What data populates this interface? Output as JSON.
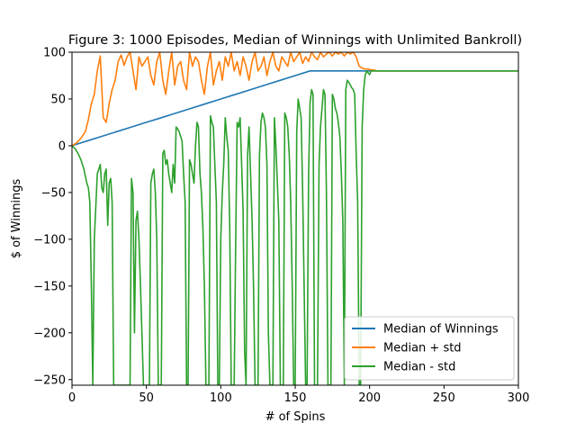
{
  "chart_data": {
    "type": "line",
    "title": "Figure 3: 1000 Episodes, Median of Winnings with Unlimited Bankroll)",
    "xlabel": "# of Spins",
    "ylabel": "$ of Winnings",
    "xlim": [
      0,
      300
    ],
    "ylim": [
      -256,
      100
    ],
    "xticks": [
      "0",
      "50",
      "100",
      "150",
      "200",
      "250",
      "300"
    ],
    "yticks": [
      "−250",
      "−200",
      "−150",
      "−100",
      "−50",
      "0",
      "50",
      "100"
    ],
    "grid": false,
    "legend_position": "lower-right",
    "series": [
      {
        "name": "Median of Winnings",
        "color": "#1f77b4",
        "x": [
          0,
          10,
          20,
          30,
          40,
          50,
          60,
          70,
          80,
          90,
          100,
          110,
          120,
          130,
          140,
          150,
          160,
          168,
          180,
          190,
          200,
          250,
          300
        ],
        "y": [
          0,
          5,
          10,
          15,
          20,
          25,
          30,
          35,
          40,
          45,
          50,
          55,
          60,
          65,
          70,
          75,
          80,
          80,
          80,
          80,
          80,
          80,
          80
        ]
      },
      {
        "name": "Median + std",
        "color": "#ff7f0e",
        "x": [
          0,
          3,
          6,
          9,
          11,
          13,
          15,
          17,
          19,
          21,
          23,
          25,
          27,
          29,
          31,
          33,
          35,
          37,
          39,
          41,
          43,
          45,
          47,
          49,
          51,
          53,
          55,
          57,
          59,
          61,
          63,
          65,
          67,
          69,
          71,
          73,
          75,
          77,
          79,
          81,
          83,
          85,
          87,
          89,
          91,
          93,
          95,
          97,
          99,
          101,
          103,
          105,
          107,
          109,
          111,
          113,
          115,
          117,
          119,
          121,
          123,
          125,
          127,
          129,
          131,
          133,
          135,
          137,
          139,
          141,
          143,
          145,
          147,
          149,
          151,
          153,
          155,
          157,
          159,
          161,
          163,
          165,
          167,
          169,
          171,
          173,
          175,
          177,
          179,
          181,
          183,
          185,
          187,
          189,
          191,
          193,
          195,
          197,
          199,
          201,
          203,
          205,
          250,
          300
        ],
        "y": [
          0,
          3,
          8,
          15,
          28,
          45,
          55,
          80,
          96,
          30,
          25,
          45,
          60,
          70,
          90,
          97,
          86,
          95,
          100,
          80,
          60,
          95,
          85,
          90,
          95,
          75,
          65,
          90,
          100,
          70,
          55,
          80,
          100,
          65,
          85,
          90,
          70,
          60,
          100,
          85,
          95,
          90,
          70,
          55,
          85,
          100,
          65,
          80,
          90,
          70,
          95,
          85,
          100,
          80,
          90,
          75,
          95,
          85,
          70,
          90,
          100,
          80,
          85,
          95,
          75,
          90,
          100,
          85,
          80,
          95,
          90,
          85,
          100,
          90,
          95,
          100,
          88,
          95,
          90,
          100,
          95,
          92,
          100,
          95,
          98,
          100,
          96,
          100,
          98,
          100,
          96,
          100,
          98,
          100,
          95,
          85,
          83,
          82,
          82,
          81,
          81,
          80,
          80,
          80
        ]
      },
      {
        "name": "Median - std",
        "color": "#2ca02c",
        "x": [
          0,
          2,
          4,
          6,
          8,
          10,
          11,
          12,
          13,
          14,
          15,
          17,
          18,
          19,
          20,
          21,
          22,
          23,
          24,
          25,
          26,
          27,
          28,
          29,
          30,
          32,
          34,
          36,
          38,
          39,
          40,
          41,
          42,
          43,
          44,
          45,
          46,
          47,
          48,
          50,
          52,
          53,
          54,
          55,
          56,
          57,
          58,
          60,
          61,
          62,
          63,
          64,
          65,
          66,
          67,
          68,
          69,
          70,
          71,
          72,
          73,
          74,
          75,
          76,
          77,
          78,
          79,
          80,
          81,
          82,
          83,
          84,
          85,
          86,
          87,
          88,
          89,
          90,
          91,
          92,
          93,
          94,
          95,
          96,
          97,
          98,
          99,
          100,
          101,
          102,
          103,
          104,
          105,
          106,
          107,
          108,
          109,
          110,
          111,
          112,
          113,
          114,
          115,
          116,
          117,
          118,
          119,
          120,
          121,
          122,
          123,
          124,
          125,
          126,
          127,
          128,
          129,
          130,
          131,
          132,
          133,
          134,
          135,
          136,
          137,
          138,
          139,
          140,
          141,
          142,
          143,
          144,
          145,
          146,
          147,
          148,
          149,
          150,
          151,
          152,
          153,
          154,
          155,
          156,
          157,
          158,
          159,
          160,
          161,
          162,
          163,
          164,
          165,
          166,
          167,
          168,
          169,
          170,
          171,
          172,
          173,
          174,
          175,
          176,
          177,
          178,
          179,
          180,
          181,
          182,
          183,
          184,
          185,
          186,
          187,
          188,
          189,
          190,
          191,
          192,
          193,
          194,
          195,
          196,
          197,
          198,
          199,
          200,
          201,
          202,
          203,
          204,
          205,
          250,
          300
        ],
        "y": [
          0,
          -3,
          -8,
          -15,
          -25,
          -40,
          -45,
          -60,
          -150,
          -256,
          -100,
          -30,
          -25,
          -20,
          -45,
          -50,
          -30,
          -25,
          -85,
          -40,
          -35,
          -60,
          -256,
          -256,
          -256,
          -256,
          -256,
          -256,
          -256,
          -256,
          -35,
          -50,
          -200,
          -80,
          -70,
          -100,
          -150,
          -200,
          -256,
          -256,
          -256,
          -40,
          -30,
          -25,
          -50,
          -100,
          -256,
          -256,
          -8,
          -5,
          -20,
          -15,
          -30,
          -40,
          -50,
          -20,
          -40,
          20,
          18,
          15,
          10,
          5,
          -30,
          -60,
          -256,
          -256,
          -15,
          -20,
          -30,
          -40,
          0,
          25,
          20,
          -30,
          -50,
          -90,
          -150,
          -256,
          -256,
          -256,
          32,
          25,
          20,
          -20,
          -60,
          -256,
          -256,
          -100,
          -50,
          -20,
          30,
          10,
          -5,
          -90,
          -256,
          -256,
          -256,
          -100,
          25,
          20,
          30,
          -20,
          -70,
          -220,
          -256,
          -10,
          20,
          -30,
          -80,
          -150,
          -256,
          -256,
          -256,
          -10,
          25,
          35,
          30,
          20,
          -20,
          -200,
          -256,
          -256,
          -256,
          30,
          0,
          -40,
          -80,
          -256,
          -256,
          -256,
          35,
          30,
          20,
          -10,
          -60,
          -150,
          -256,
          -256,
          15,
          50,
          40,
          30,
          -50,
          -150,
          -256,
          -256,
          -30,
          45,
          60,
          55,
          -256,
          -256,
          -256,
          -20,
          20,
          40,
          60,
          55,
          -50,
          -256,
          -256,
          -256,
          55,
          50,
          40,
          35,
          25,
          10,
          -30,
          -80,
          -256,
          60,
          70,
          68,
          65,
          62,
          60,
          55,
          -10,
          -60,
          -256,
          -256,
          20,
          60,
          75,
          80,
          78,
          76,
          80,
          80,
          80,
          80,
          80,
          80,
          80
        ]
      }
    ]
  }
}
